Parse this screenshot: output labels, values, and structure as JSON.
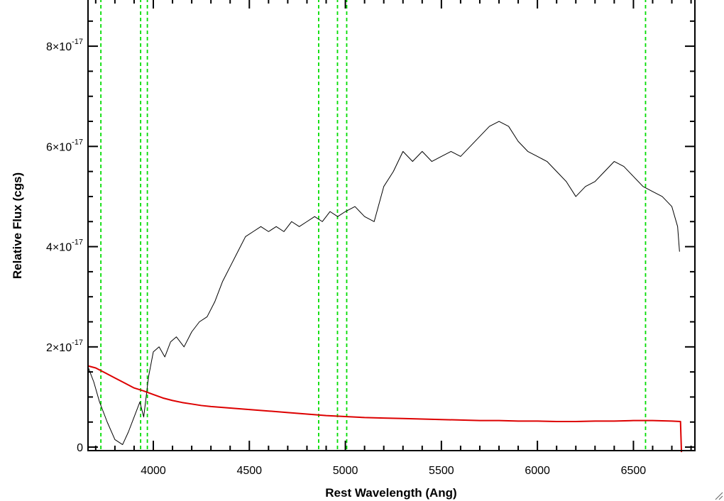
{
  "chart_data": {
    "type": "line",
    "title": "",
    "xlabel": "Rest Wavelength (Ang)",
    "ylabel": "Relative Flux (cgs)",
    "xlim": [
      3660,
      6820
    ],
    "ylim": [
      -7e-19,
      8.95e-17
    ],
    "x_ticks": [
      4000,
      4500,
      5000,
      5500,
      6000,
      6500
    ],
    "x_tick_labels": [
      "4000",
      "4500",
      "5000",
      "5500",
      "6000",
      "6500"
    ],
    "y_ticks": [
      0,
      2e-17,
      4e-17,
      6e-17,
      8e-17
    ],
    "y_tick_labels": [
      {
        "mantissa": "0",
        "exponent": ""
      },
      {
        "mantissa": "2×10",
        "exponent": "-17"
      },
      {
        "mantissa": "4×10",
        "exponent": "-17"
      },
      {
        "mantissa": "6×10",
        "exponent": "-17"
      },
      {
        "mantissa": "8×10",
        "exponent": "-17"
      }
    ],
    "grid": false,
    "reference_lines": {
      "color": "#00dd00",
      "style": "dashed",
      "x": [
        3727,
        3934,
        3969,
        4861,
        4959,
        5007,
        6563
      ]
    },
    "series": [
      {
        "color": "#000000",
        "points": [
          [
            3660,
            1.6
          ],
          [
            3690,
            1.3
          ],
          [
            3720,
            0.9
          ],
          [
            3760,
            0.5
          ],
          [
            3800,
            0.15
          ],
          [
            3840,
            0.05
          ],
          [
            3870,
            0.3
          ],
          [
            3900,
            0.6
          ],
          [
            3930,
            0.9
          ],
          [
            3950,
            0.6
          ],
          [
            3975,
            1.4
          ],
          [
            4000,
            1.9
          ],
          [
            4030,
            2.0
          ],
          [
            4060,
            1.8
          ],
          [
            4090,
            2.1
          ],
          [
            4120,
            2.2
          ],
          [
            4160,
            2.0
          ],
          [
            4200,
            2.3
          ],
          [
            4240,
            2.5
          ],
          [
            4280,
            2.6
          ],
          [
            4320,
            2.9
          ],
          [
            4360,
            3.3
          ],
          [
            4400,
            3.6
          ],
          [
            4440,
            3.9
          ],
          [
            4480,
            4.2
          ],
          [
            4520,
            4.3
          ],
          [
            4560,
            4.4
          ],
          [
            4600,
            4.3
          ],
          [
            4640,
            4.4
          ],
          [
            4680,
            4.3
          ],
          [
            4720,
            4.5
          ],
          [
            4760,
            4.4
          ],
          [
            4800,
            4.5
          ],
          [
            4840,
            4.6
          ],
          [
            4880,
            4.5
          ],
          [
            4920,
            4.7
          ],
          [
            4960,
            4.6
          ],
          [
            5000,
            4.7
          ],
          [
            5050,
            4.8
          ],
          [
            5100,
            4.6
          ],
          [
            5150,
            4.5
          ],
          [
            5200,
            5.2
          ],
          [
            5250,
            5.5
          ],
          [
            5300,
            5.9
          ],
          [
            5350,
            5.7
          ],
          [
            5400,
            5.9
          ],
          [
            5450,
            5.7
          ],
          [
            5500,
            5.8
          ],
          [
            5550,
            5.9
          ],
          [
            5600,
            5.8
          ],
          [
            5650,
            6.0
          ],
          [
            5700,
            6.2
          ],
          [
            5750,
            6.4
          ],
          [
            5800,
            6.5
          ],
          [
            5850,
            6.4
          ],
          [
            5900,
            6.1
          ],
          [
            5950,
            5.9
          ],
          [
            6000,
            5.8
          ],
          [
            6050,
            5.7
          ],
          [
            6100,
            5.5
          ],
          [
            6150,
            5.3
          ],
          [
            6200,
            5.0
          ],
          [
            6250,
            5.2
          ],
          [
            6300,
            5.3
          ],
          [
            6350,
            5.5
          ],
          [
            6400,
            5.7
          ],
          [
            6450,
            5.6
          ],
          [
            6500,
            5.4
          ],
          [
            6550,
            5.2
          ],
          [
            6600,
            5.1
          ],
          [
            6650,
            5.0
          ],
          [
            6700,
            4.8
          ],
          [
            6730,
            4.4
          ],
          [
            6740,
            3.9
          ]
        ]
      },
      {
        "color": "#dd0000",
        "points": [
          [
            3660,
            1.62
          ],
          [
            3700,
            1.58
          ],
          [
            3750,
            1.48
          ],
          [
            3800,
            1.38
          ],
          [
            3850,
            1.28
          ],
          [
            3900,
            1.18
          ],
          [
            3950,
            1.12
          ],
          [
            4000,
            1.05
          ],
          [
            4050,
            0.98
          ],
          [
            4100,
            0.93
          ],
          [
            4150,
            0.89
          ],
          [
            4200,
            0.86
          ],
          [
            4250,
            0.83
          ],
          [
            4300,
            0.81
          ],
          [
            4400,
            0.78
          ],
          [
            4500,
            0.75
          ],
          [
            4600,
            0.72
          ],
          [
            4700,
            0.69
          ],
          [
            4800,
            0.66
          ],
          [
            4900,
            0.63
          ],
          [
            5000,
            0.61
          ],
          [
            5100,
            0.59
          ],
          [
            5200,
            0.58
          ],
          [
            5300,
            0.57
          ],
          [
            5400,
            0.56
          ],
          [
            5500,
            0.55
          ],
          [
            5600,
            0.54
          ],
          [
            5700,
            0.53
          ],
          [
            5800,
            0.53
          ],
          [
            5900,
            0.52
          ],
          [
            6000,
            0.52
          ],
          [
            6100,
            0.51
          ],
          [
            6200,
            0.51
          ],
          [
            6300,
            0.52
          ],
          [
            6400,
            0.52
          ],
          [
            6500,
            0.53
          ],
          [
            6600,
            0.53
          ],
          [
            6700,
            0.52
          ],
          [
            6745,
            0.51
          ],
          [
            6750,
            -0.1
          ]
        ]
      }
    ]
  }
}
